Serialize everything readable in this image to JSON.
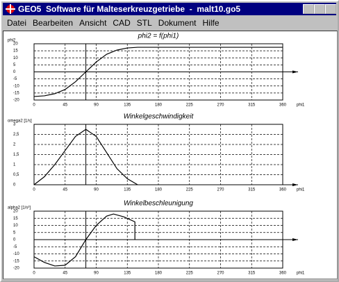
{
  "window": {
    "title": "GEO5  Software für Malteserkreuzgetriebe  -  malt10.go5"
  },
  "menu": [
    "Datei",
    "Bearbeiten",
    "Ansicht",
    "CAD",
    "STL",
    "Dokument",
    "Hilfe"
  ],
  "chart_data": [
    {
      "type": "line",
      "title": "phi2 = f(phi1)",
      "y_label": "phi2",
      "x_label": "phi1",
      "x": [
        0,
        15,
        30,
        45,
        60,
        75,
        90,
        105,
        120,
        135,
        150,
        360
      ],
      "series": [
        {
          "color": "#000000",
          "values": [
            -17.5,
            -17,
            -15.5,
            -12.5,
            -7,
            0,
            7,
            12.5,
            15.5,
            17,
            17.5,
            17.5
          ]
        }
      ],
      "marker_x": 75,
      "xlim": [
        0,
        360
      ],
      "xticks": [
        0,
        45,
        90,
        135,
        180,
        225,
        270,
        315,
        360
      ],
      "ylim": [
        -20,
        20
      ],
      "yticks": [
        20,
        15,
        10,
        5,
        0,
        -5,
        -10,
        -15,
        -20
      ],
      "grid": true
    },
    {
      "type": "line",
      "title": "Winkelgeschwindigkeit",
      "y_label": "omega2 [1/s]",
      "x_label": "phi1",
      "x": [
        0,
        15,
        30,
        45,
        60,
        75,
        90,
        105,
        120,
        135,
        150
      ],
      "series": [
        {
          "color": "#000000",
          "values": [
            0,
            0.4,
            1,
            1.7,
            2.4,
            2.75,
            2.4,
            1.6,
            0.8,
            0.3,
            0
          ]
        }
      ],
      "marker_x": 75,
      "xlim": [
        0,
        360
      ],
      "xticks": [
        0,
        45,
        90,
        135,
        180,
        225,
        270,
        315,
        360
      ],
      "ylim": [
        0,
        3
      ],
      "yticks": [
        3,
        {
          "value": 2.5,
          "label": "2,5"
        },
        2,
        {
          "value": 1.5,
          "label": "1,5"
        },
        1,
        {
          "value": 0.5,
          "label": "0,5"
        },
        0
      ],
      "grid": true
    },
    {
      "type": "line",
      "title": "Winkelbeschleunigung",
      "y_label": "alpha2 [1/s²]",
      "x_label": "phi1",
      "x": [
        0,
        15,
        30,
        45,
        60,
        75,
        90,
        105,
        115,
        130,
        146,
        146
      ],
      "series": [
        {
          "color": "#000000",
          "values": [
            -12,
            -16,
            -18.5,
            -18,
            -12,
            0,
            10,
            16.5,
            18,
            16,
            12.5,
            0
          ]
        }
      ],
      "marker_x": 75,
      "xlim": [
        0,
        360
      ],
      "xticks": [
        0,
        45,
        90,
        135,
        180,
        225,
        270,
        315,
        360
      ],
      "ylim": [
        -20,
        20
      ],
      "yticks": [
        20,
        15,
        10,
        5,
        0,
        -5,
        -10,
        -15,
        -20
      ],
      "grid": true
    }
  ]
}
